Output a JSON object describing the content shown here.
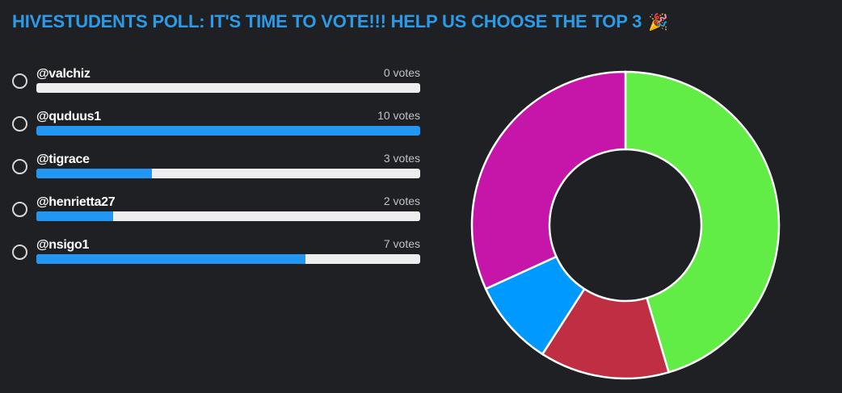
{
  "poll": {
    "title": "HIVESTUDENTS POLL: IT'S TIME TO VOTE!!! HELP US CHOOSE THE TOP 3",
    "title_emoji": "🎉",
    "options": [
      {
        "label": "@valchiz",
        "votes_text": "0 votes",
        "votes": 0,
        "fill_fraction": 0.0
      },
      {
        "label": "@quduus1",
        "votes_text": "10 votes",
        "votes": 10,
        "fill_fraction": 1.0
      },
      {
        "label": "@tigrace",
        "votes_text": "3 votes",
        "votes": 3,
        "fill_fraction": 0.3
      },
      {
        "label": "@henrietta27",
        "votes_text": "2 votes",
        "votes": 2,
        "fill_fraction": 0.2
      },
      {
        "label": "@nsigo1",
        "votes_text": "7 votes",
        "votes": 7,
        "fill_fraction": 0.7
      }
    ]
  },
  "colors": {
    "title": "#2b9be8",
    "bar_fill": "#2196f3",
    "bar_track": "#eeeeee",
    "background": "#1e2023"
  },
  "chart_data": {
    "type": "pie",
    "categories": [
      "@quduus1",
      "@tigrace",
      "@henrietta27",
      "@nsigo1"
    ],
    "values": [
      10,
      3,
      2,
      7
    ],
    "colors": [
      "#62ec46",
      "#c02e43",
      "#0099ff",
      "#c616a9"
    ]
  }
}
